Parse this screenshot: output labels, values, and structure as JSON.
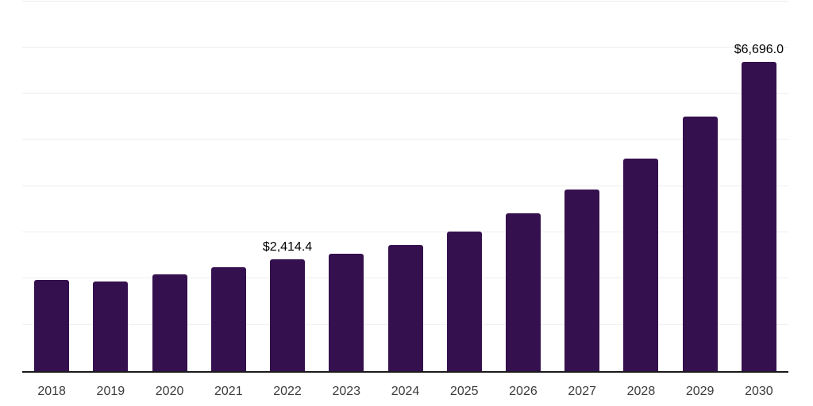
{
  "chart_data": {
    "type": "bar",
    "title": "",
    "xlabel": "",
    "ylabel": "",
    "categories": [
      "2018",
      "2019",
      "2020",
      "2021",
      "2022",
      "2023",
      "2024",
      "2025",
      "2026",
      "2027",
      "2028",
      "2029",
      "2030"
    ],
    "values": [
      1965,
      1930,
      2085,
      2255,
      2414.4,
      2530,
      2735,
      3010,
      3420,
      3920,
      4600,
      5505,
      6696
    ],
    "data_labels": [
      {
        "category": "2022",
        "text": "$2,414.4"
      },
      {
        "category": "2030",
        "text": "$6,696.0"
      }
    ],
    "ylim": [
      0,
      8000
    ],
    "gridline_step": 1000,
    "grid": true,
    "legend": false,
    "y_axis_tick_labels_visible": false,
    "colors": {
      "bar": "#35104E",
      "gridline": "#eeeeee",
      "axis_line": "#1a1a1a",
      "tick_label": "#3c3c3c",
      "value_label": "#000000",
      "background": "#ffffff"
    }
  }
}
